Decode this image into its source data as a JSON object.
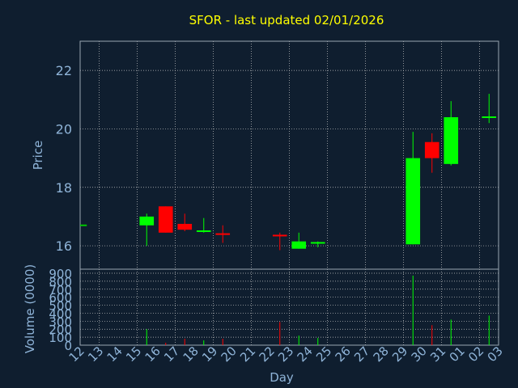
{
  "chart_data": {
    "type": "candlestick",
    "title": "SFOR - last updated 02/01/2026",
    "price_panel": {
      "ylabel": "Price",
      "ylim": [
        15.2,
        23.0
      ],
      "yticks": [
        16,
        18,
        20,
        22
      ]
    },
    "volume_panel": {
      "ylabel": "Volume (0000)",
      "ylim": [
        0,
        900
      ],
      "yticks": [
        0,
        100,
        200,
        300,
        400,
        500,
        600,
        700,
        800,
        900
      ]
    },
    "xlabel": "Day",
    "x_tick_labels": [
      "12",
      "13",
      "14",
      "15",
      "16",
      "17",
      "18",
      "19",
      "20",
      "21",
      "22",
      "23",
      "24",
      "25",
      "26",
      "27",
      "28",
      "29",
      "30",
      "31",
      "01",
      "02",
      "03"
    ],
    "grid": true,
    "candles": [
      {
        "day": "12",
        "open": 16.7,
        "high": 16.7,
        "low": 16.7,
        "close": 16.7,
        "volume": 0
      },
      {
        "day": "15",
        "open": 16.7,
        "high": 17.1,
        "low": 16.0,
        "close": 17.0,
        "volume": 200
      },
      {
        "day": "16",
        "open": 17.35,
        "high": 17.35,
        "low": 16.45,
        "close": 16.45,
        "volume": 30
      },
      {
        "day": "17",
        "open": 16.75,
        "high": 17.1,
        "low": 16.5,
        "close": 16.55,
        "volume": 80
      },
      {
        "day": "18",
        "open": 16.5,
        "high": 16.95,
        "low": 16.45,
        "close": 16.5,
        "volume": 60
      },
      {
        "day": "19",
        "open": 16.4,
        "high": 16.7,
        "low": 16.1,
        "close": 16.4,
        "volume": 80
      },
      {
        "day": "22",
        "open": 16.35,
        "high": 16.45,
        "low": 15.85,
        "close": 16.3,
        "volume": 290
      },
      {
        "day": "23",
        "open": 15.9,
        "high": 16.45,
        "low": 15.9,
        "close": 16.15,
        "volume": 120
      },
      {
        "day": "24",
        "open": 16.05,
        "high": 16.15,
        "low": 15.95,
        "close": 16.1,
        "volume": 90
      },
      {
        "day": "29",
        "open": 16.05,
        "high": 19.9,
        "low": 16.05,
        "close": 19.0,
        "volume": 870
      },
      {
        "day": "30",
        "open": 19.55,
        "high": 19.85,
        "low": 18.5,
        "close": 19.0,
        "volume": 250
      },
      {
        "day": "31",
        "open": 18.8,
        "high": 20.95,
        "low": 18.75,
        "close": 20.4,
        "volume": 320
      },
      {
        "day": "02",
        "open": 20.4,
        "high": 21.2,
        "low": 20.2,
        "close": 20.4,
        "volume": 370
      }
    ],
    "colors": {
      "background": "#0f1e2f",
      "up": "#00ff00",
      "down": "#ff0000",
      "neutral": "#00c800",
      "title": "#ffff00",
      "axis_text": "#8fb4d8",
      "grid": "#c8c8c8",
      "frame": "#9aa5b2"
    }
  }
}
